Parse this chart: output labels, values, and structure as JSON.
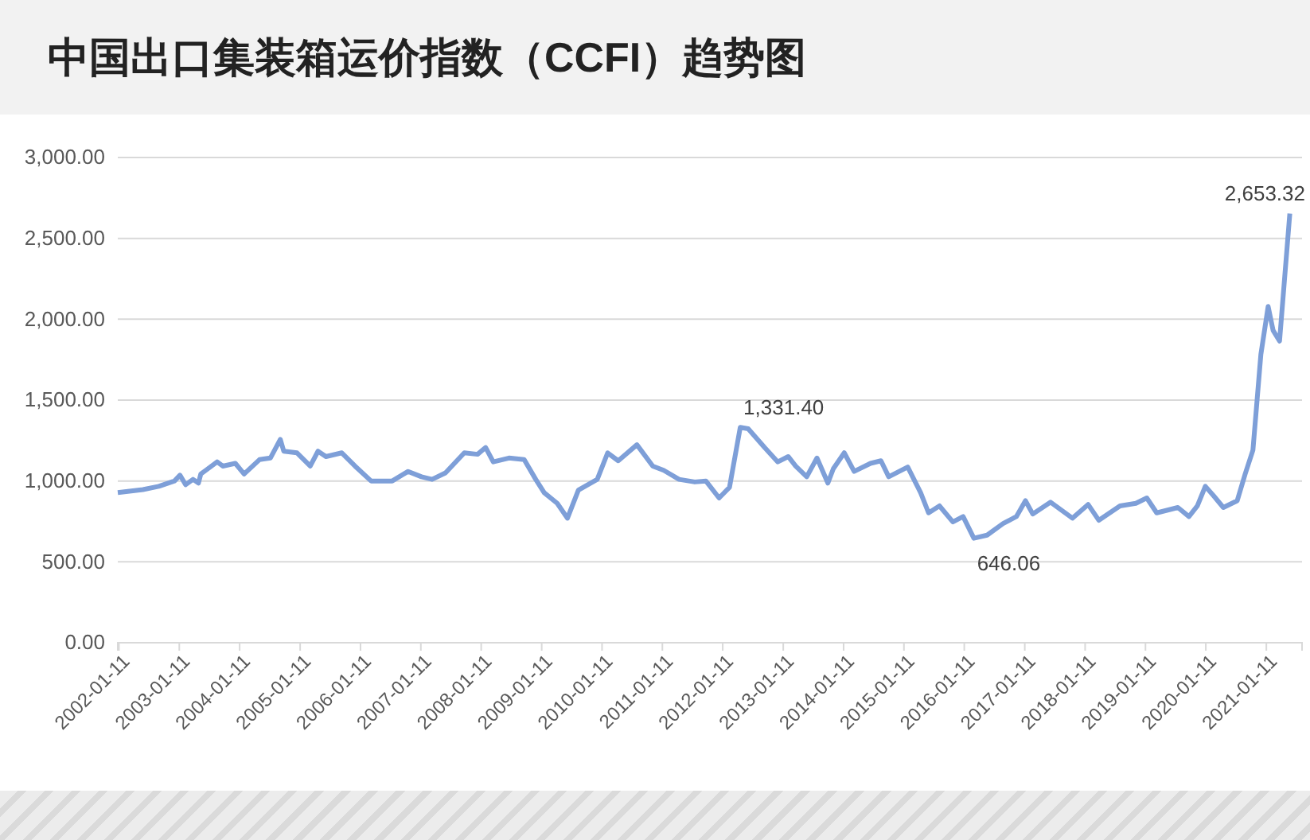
{
  "chart_data": {
    "type": "line",
    "title": "中国出口集装箱运价指数（CCFI）趋势图",
    "x": [
      "2002-01-04",
      "2002-06-05",
      "2002-09-09",
      "2002-12-13",
      "2003-01-15",
      "2003-02-18",
      "2003-04-04",
      "2003-05-07",
      "2003-05-21",
      "2003-08-28",
      "2003-10-01",
      "2003-12-16",
      "2004-02-07",
      "2004-05-10",
      "2004-07-15",
      "2004-09-13",
      "2004-10-04",
      "2004-12-23",
      "2005-03-13",
      "2005-04-29",
      "2005-06-16",
      "2005-09-20",
      "2005-12-09",
      "2006-03-16",
      "2006-07-22",
      "2006-10-26",
      "2007-01-15",
      "2007-03-20",
      "2007-06-09",
      "2007-10-01",
      "2007-12-20",
      "2008-02-07",
      "2008-03-24",
      "2008-06-27",
      "2008-09-27",
      "2008-12-06",
      "2009-01-26",
      "2009-04-15",
      "2009-06-16",
      "2009-08-21",
      "2009-12-13",
      "2010-02-14",
      "2010-04-19",
      "2010-08-10",
      "2010-11-14",
      "2011-01-19",
      "2011-04-22",
      "2011-07-26",
      "2011-10-01",
      "2011-12-20",
      "2012-02-21",
      "2012-04-26",
      "2012-06-13",
      "2012-09-20",
      "2012-12-09",
      "2013-02-10",
      "2013-03-27",
      "2013-06-02",
      "2013-08-03",
      "2013-10-08",
      "2013-11-10",
      "2014-01-15",
      "2014-03-16",
      "2014-06-23",
      "2014-08-25",
      "2014-10-11",
      "2015-02-03",
      "2015-04-22",
      "2015-06-09",
      "2015-08-14",
      "2015-11-03",
      "2016-01-04",
      "2016-03-09",
      "2016-05-28",
      "2016-09-02",
      "2016-11-21",
      "2017-01-15",
      "2017-02-28",
      "2017-06-16",
      "2017-10-26",
      "2018-01-29",
      "2018-04-04",
      "2018-08-10",
      "2018-11-14",
      "2019-01-19",
      "2019-03-20",
      "2019-07-26",
      "2019-10-01",
      "2019-11-21",
      "2020-01-08",
      "2020-02-25",
      "2020-04-26",
      "2020-07-19",
      "2020-09-05",
      "2020-10-22",
      "2020-12-09",
      "2021-01-22",
      "2021-02-21",
      "2021-04-01",
      "2021-06-02"
    ],
    "series": [
      {
        "color": "#7e9fd8",
        "values": [
          928,
          947,
          967,
          1000,
          1036,
          977,
          1010,
          987,
          1043,
          1118,
          1092,
          1109,
          1043,
          1132,
          1142,
          1257,
          1184,
          1174,
          1092,
          1184,
          1151,
          1174,
          1092,
          1000,
          1000,
          1059,
          1026,
          1010,
          1050,
          1174,
          1165,
          1207,
          1118,
          1142,
          1132,
          1010,
          928,
          862,
          770,
          944,
          1010,
          1174,
          1125,
          1224,
          1092,
          1066,
          1010,
          994,
          1000,
          895,
          961,
          1331.4,
          1323,
          1207,
          1118,
          1151,
          1092,
          1026,
          1142,
          987,
          1076,
          1174,
          1059,
          1109,
          1125,
          1026,
          1086,
          928,
          803,
          846,
          747,
          780,
          646.06,
          665,
          737,
          780,
          878,
          796,
          869,
          770,
          855,
          757,
          846,
          862,
          895,
          803,
          836,
          780,
          846,
          967,
          911,
          836,
          878,
          1043,
          1191,
          1783,
          2079,
          1931,
          1865,
          2653.32
        ],
        "value_labels": [
          null,
          null,
          null,
          null,
          null,
          null,
          null,
          null,
          null,
          null,
          null,
          null,
          null,
          null,
          null,
          null,
          null,
          null,
          null,
          null,
          null,
          null,
          null,
          null,
          null,
          null,
          null,
          null,
          null,
          null,
          null,
          null,
          null,
          null,
          null,
          null,
          null,
          null,
          null,
          null,
          null,
          null,
          null,
          null,
          null,
          null,
          null,
          null,
          null,
          null,
          null,
          "1,331.40",
          null,
          null,
          null,
          null,
          null,
          null,
          null,
          null,
          null,
          null,
          null,
          null,
          null,
          null,
          null,
          null,
          null,
          null,
          null,
          null,
          "646.06",
          null,
          null,
          null,
          null,
          null,
          null,
          null,
          null,
          null,
          null,
          null,
          null,
          null,
          null,
          null,
          null,
          null,
          null,
          null,
          null,
          null,
          null,
          null,
          null,
          null,
          null,
          "2,653.32"
        ]
      }
    ],
    "xlim": [
      "2002-01-04",
      "2021-08-15"
    ],
    "xticks": [
      {
        "value": "2002-01-11",
        "label": "2002-01-11"
      },
      {
        "value": "2003-01-11",
        "label": "2003-01-11"
      },
      {
        "value": "2004-01-11",
        "label": "2004-01-11"
      },
      {
        "value": "2005-01-11",
        "label": "2005-01-11"
      },
      {
        "value": "2006-01-11",
        "label": "2006-01-11"
      },
      {
        "value": "2007-01-11",
        "label": "2007-01-11"
      },
      {
        "value": "2008-01-11",
        "label": "2008-01-11"
      },
      {
        "value": "2009-01-11",
        "label": "2009-01-11"
      },
      {
        "value": "2010-01-11",
        "label": "2010-01-11"
      },
      {
        "value": "2011-01-11",
        "label": "2011-01-11"
      },
      {
        "value": "2012-01-11",
        "label": "2012-01-11"
      },
      {
        "value": "2013-01-11",
        "label": "2013-01-11"
      },
      {
        "value": "2014-01-11",
        "label": "2014-01-11"
      },
      {
        "value": "2015-01-11",
        "label": "2015-01-11"
      },
      {
        "value": "2016-01-11",
        "label": "2016-01-11"
      },
      {
        "value": "2017-01-11",
        "label": "2017-01-11"
      },
      {
        "value": "2018-01-11",
        "label": "2018-01-11"
      },
      {
        "value": "2019-01-11",
        "label": "2019-01-11"
      },
      {
        "value": "2020-01-11",
        "label": "2020-01-11"
      },
      {
        "value": "2021-01-11",
        "label": "2021-01-11"
      }
    ],
    "ylim": [
      0,
      3000
    ],
    "yticks": [
      {
        "value": 0,
        "label": "0.00"
      },
      {
        "value": 500,
        "label": "500.00"
      },
      {
        "value": 1000,
        "label": "1,000.00"
      },
      {
        "value": 1500,
        "label": "1,500.00"
      },
      {
        "value": 2000,
        "label": "2,000.00"
      },
      {
        "value": 2500,
        "label": "2,500.00"
      },
      {
        "value": 3000,
        "label": "3,000.00"
      }
    ],
    "grid": "y"
  }
}
